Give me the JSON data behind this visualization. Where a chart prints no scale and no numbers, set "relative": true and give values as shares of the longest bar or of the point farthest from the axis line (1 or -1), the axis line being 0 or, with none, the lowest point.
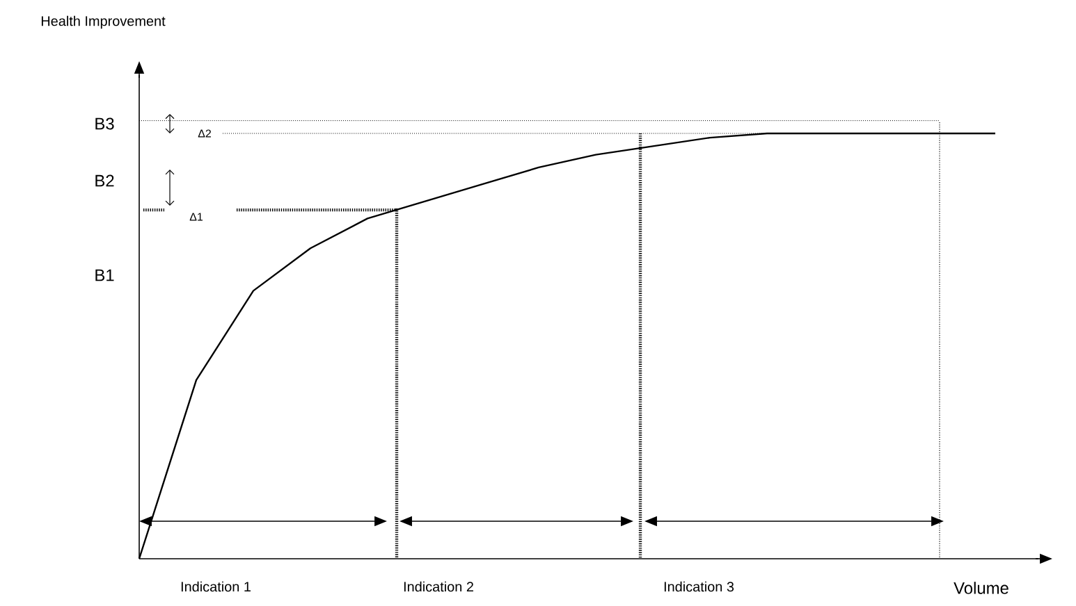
{
  "chart_data": {
    "type": "line",
    "relative": true,
    "xlabel": "Volume",
    "color": "#000000",
    "marker": "none",
    "line_style": "solid",
    "categories": [
      null,
      null,
      null,
      null,
      null,
      null,
      null,
      null,
      null,
      null,
      null,
      null,
      null,
      null,
      null,
      null
    ],
    "values": [
      0,
      0.42,
      0.63,
      0.73,
      0.8,
      0.84,
      0.88,
      0.92,
      0.95,
      0.97,
      0.99,
      1.0,
      1.0,
      1.0,
      1.0,
      1.0
    ],
    "ref_lines": [
      {
        "axis": "y",
        "value": 1.03,
        "label": null,
        "line_style": "dotted"
      },
      {
        "axis": "y",
        "value": 1.0,
        "label": null,
        "line_style": "dotted"
      },
      {
        "axis": "y",
        "value": 0.82,
        "label": null,
        "line_style": "dotted"
      }
    ],
    "annotations": [
      "B3",
      "B2",
      "B1",
      "Δ1",
      "Δ2",
      "Indication 1",
      "Indication 2",
      "Indication 3",
      "Health Improvement"
    ]
  }
}
